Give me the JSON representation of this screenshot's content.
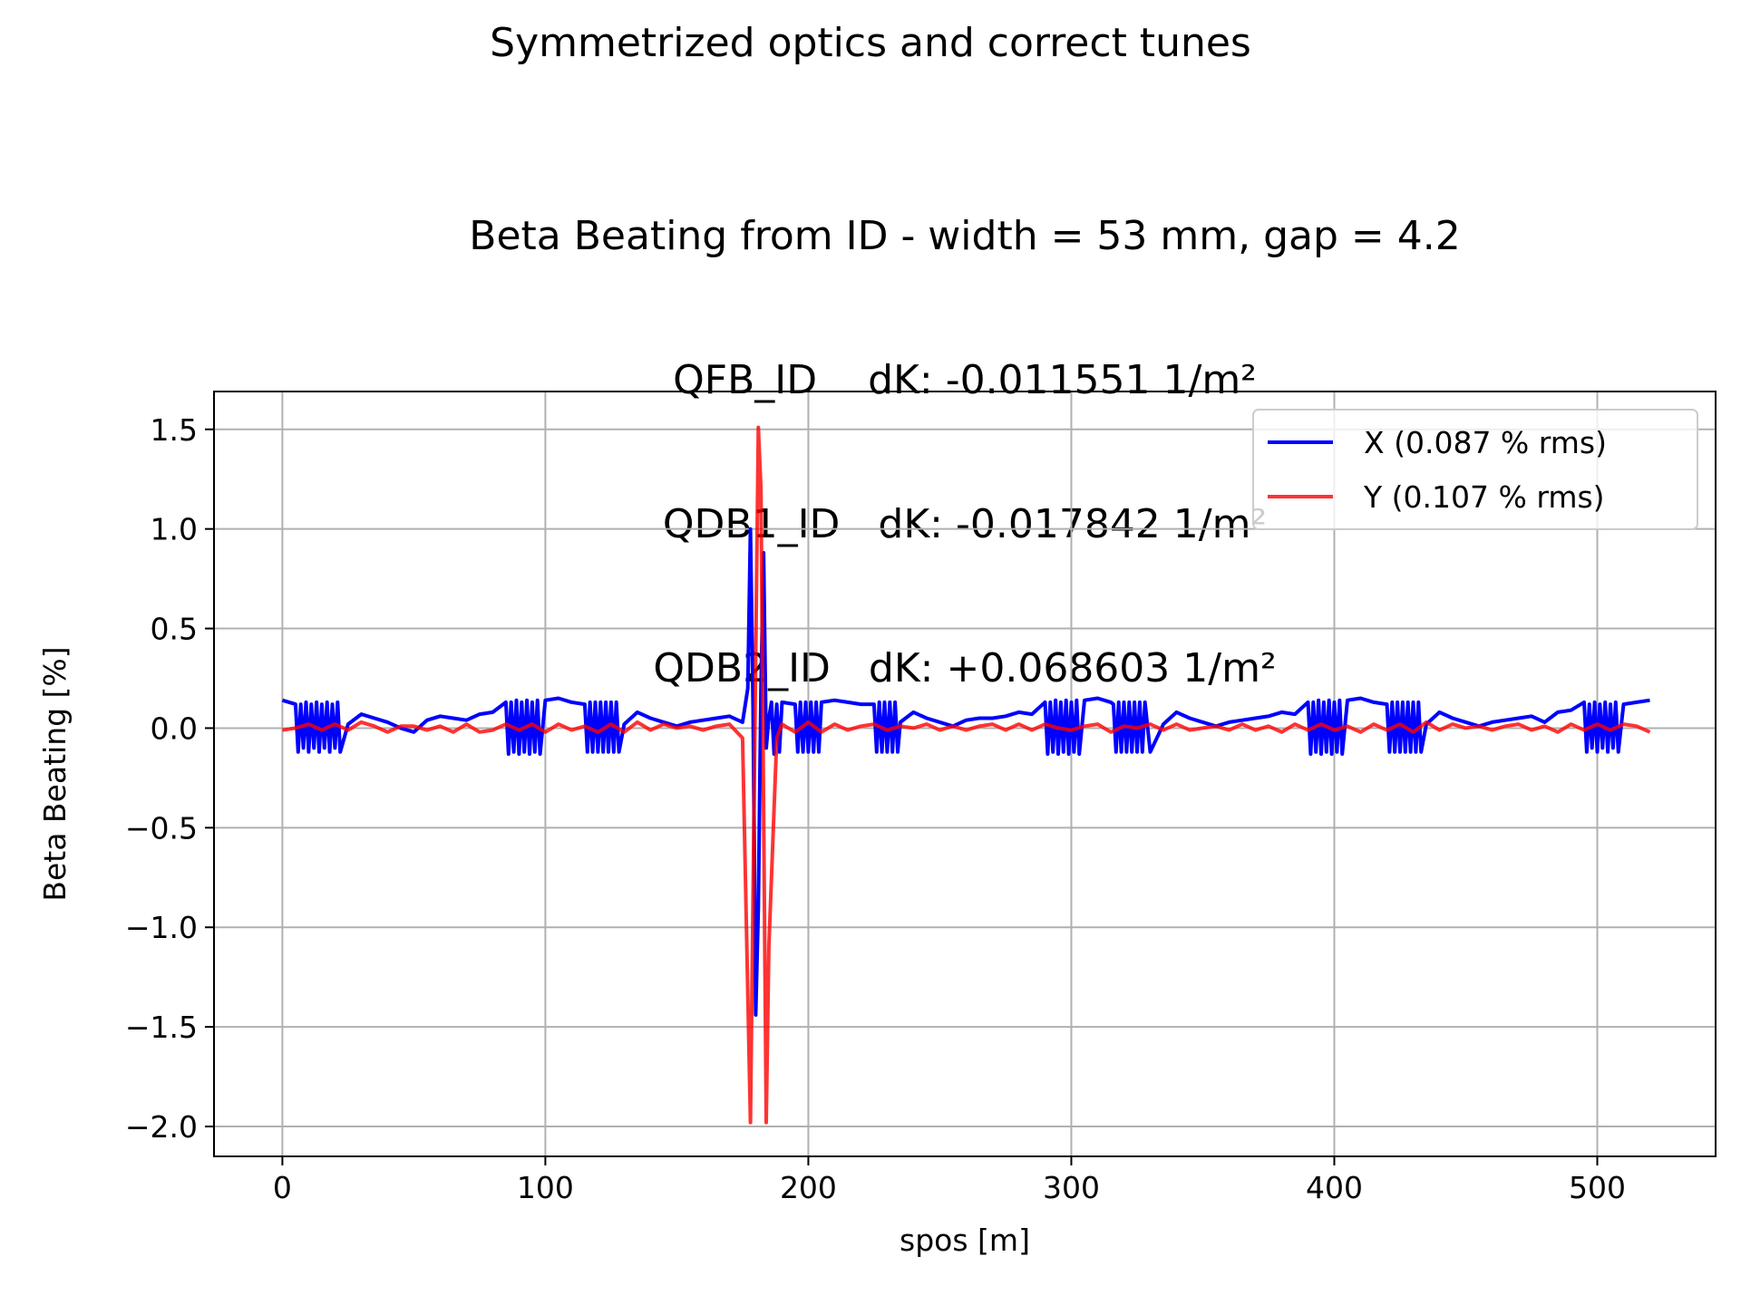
{
  "suptitle": "Symmetrized optics and correct tunes",
  "title_lines": [
    "Beta Beating from ID - width = 53 mm, gap = 4.2",
    "QFB_ID    dK: -0.011551 1/m²",
    "QDB1_ID   dK: -0.017842 1/m²",
    "QDB2_ID   dK: +0.068603 1/m²"
  ],
  "chart_data": {
    "type": "line",
    "xlabel": "spos [m]",
    "ylabel": "Beta Beating [%]",
    "xlim": [
      -26,
      545
    ],
    "ylim": [
      -2.15,
      1.69
    ],
    "xticks": [
      0,
      100,
      200,
      300,
      400,
      500
    ],
    "xtick_labels": [
      "0",
      "100",
      "200",
      "300",
      "400",
      "500"
    ],
    "yticks": [
      1.5,
      1.0,
      0.5,
      0.0,
      -0.5,
      -1.0,
      -1.5,
      -2.0
    ],
    "ytick_labels": [
      "1.5",
      "1.0",
      "0.5",
      "0.0",
      "−0.5",
      "−1.0",
      "−1.5",
      "−2.0"
    ],
    "grid": true,
    "legend_position": "upper right",
    "series": [
      {
        "name": "X (0.087 % rms)",
        "color": "#0000ff",
        "x": [
          0,
          5,
          6,
          7,
          8,
          9,
          10,
          11,
          12,
          13,
          14,
          15,
          16,
          17,
          18,
          19,
          20,
          21,
          22,
          25,
          30,
          35,
          40,
          45,
          50,
          55,
          60,
          65,
          70,
          75,
          80,
          85,
          86,
          87,
          88,
          89,
          90,
          91,
          92,
          93,
          94,
          95,
          96,
          97,
          98,
          100,
          105,
          110,
          115,
          116,
          117,
          118,
          119,
          120,
          121,
          122,
          123,
          124,
          125,
          126,
          127,
          128,
          130,
          135,
          140,
          145,
          150,
          155,
          160,
          165,
          170,
          175,
          177,
          178,
          179,
          180,
          181,
          182,
          183,
          184,
          185,
          186,
          187,
          188,
          189,
          190,
          195,
          196,
          197,
          198,
          199,
          200,
          201,
          202,
          203,
          204,
          205,
          210,
          215,
          220,
          225,
          226,
          227,
          228,
          229,
          230,
          231,
          232,
          233,
          234,
          235,
          240,
          245,
          250,
          255,
          260,
          265,
          270,
          275,
          280,
          285,
          290,
          291,
          292,
          293,
          294,
          295,
          296,
          297,
          298,
          299,
          300,
          301,
          302,
          303,
          305,
          310,
          315,
          316,
          317,
          318,
          319,
          320,
          321,
          322,
          323,
          324,
          325,
          326,
          327,
          328,
          330,
          335,
          340,
          345,
          350,
          355,
          360,
          365,
          370,
          375,
          380,
          385,
          390,
          391,
          392,
          393,
          394,
          395,
          396,
          397,
          398,
          399,
          400,
          401,
          402,
          403,
          405,
          410,
          415,
          420,
          421,
          422,
          423,
          424,
          425,
          426,
          427,
          428,
          429,
          430,
          431,
          432,
          433,
          435,
          440,
          445,
          450,
          455,
          460,
          465,
          470,
          475,
          480,
          485,
          490,
          495,
          496,
          497,
          498,
          499,
          500,
          501,
          502,
          503,
          504,
          505,
          506,
          507,
          508,
          510,
          515,
          520
        ],
        "y": [
          0.14,
          0.12,
          -0.12,
          0.12,
          -0.1,
          0.13,
          -0.12,
          0.12,
          -0.1,
          0.13,
          -0.12,
          0.12,
          -0.1,
          0.13,
          -0.12,
          0.12,
          -0.1,
          0.13,
          -0.12,
          0.02,
          0.07,
          0.05,
          0.03,
          0.0,
          -0.02,
          0.04,
          0.06,
          0.05,
          0.04,
          0.07,
          0.08,
          0.13,
          -0.13,
          0.13,
          -0.12,
          0.14,
          -0.13,
          0.13,
          -0.12,
          0.14,
          -0.13,
          0.13,
          -0.12,
          0.14,
          -0.13,
          0.14,
          0.15,
          0.13,
          0.12,
          -0.12,
          0.13,
          -0.12,
          0.13,
          -0.12,
          0.13,
          -0.12,
          0.13,
          -0.12,
          0.13,
          -0.12,
          0.13,
          -0.12,
          0.02,
          0.08,
          0.05,
          0.03,
          0.01,
          0.03,
          0.04,
          0.05,
          0.06,
          0.03,
          0.2,
          1.0,
          0.1,
          -1.44,
          -0.9,
          0.2,
          0.88,
          -0.1,
          0.05,
          0.13,
          -0.13,
          0.12,
          -0.12,
          0.13,
          0.12,
          -0.12,
          0.13,
          -0.12,
          0.13,
          -0.12,
          0.13,
          -0.12,
          0.13,
          -0.12,
          0.13,
          0.14,
          0.13,
          0.12,
          0.12,
          -0.12,
          0.13,
          -0.12,
          0.13,
          -0.12,
          0.13,
          -0.12,
          0.13,
          -0.12,
          0.03,
          0.08,
          0.05,
          0.03,
          0.01,
          0.04,
          0.05,
          0.05,
          0.06,
          0.08,
          0.07,
          0.13,
          -0.13,
          0.13,
          -0.12,
          0.14,
          -0.13,
          0.13,
          -0.12,
          0.14,
          -0.13,
          0.13,
          -0.12,
          0.14,
          -0.13,
          0.14,
          0.15,
          0.13,
          0.12,
          -0.12,
          0.13,
          -0.12,
          0.13,
          -0.12,
          0.13,
          -0.12,
          0.13,
          -0.12,
          0.13,
          -0.12,
          0.13,
          -0.12,
          0.02,
          0.08,
          0.05,
          0.03,
          0.01,
          0.03,
          0.04,
          0.05,
          0.06,
          0.08,
          0.07,
          0.13,
          -0.13,
          0.13,
          -0.12,
          0.14,
          -0.13,
          0.13,
          -0.12,
          0.14,
          -0.13,
          0.13,
          -0.12,
          0.14,
          -0.13,
          0.14,
          0.15,
          0.13,
          0.12,
          -0.12,
          0.13,
          -0.12,
          0.13,
          -0.12,
          0.13,
          -0.12,
          0.13,
          -0.12,
          0.13,
          -0.12,
          0.13,
          -0.12,
          0.02,
          0.08,
          0.05,
          0.03,
          0.01,
          0.03,
          0.04,
          0.05,
          0.06,
          0.03,
          0.08,
          0.09,
          0.13,
          -0.12,
          0.12,
          -0.1,
          0.13,
          -0.12,
          0.12,
          -0.1,
          0.13,
          -0.12,
          0.12,
          -0.1,
          0.13,
          -0.12,
          0.12,
          0.13,
          0.14
        ]
      },
      {
        "name": "Y (0.107 % rms)",
        "color": "#ff0000",
        "x": [
          0,
          5,
          10,
          15,
          20,
          25,
          30,
          35,
          40,
          45,
          50,
          55,
          60,
          65,
          70,
          75,
          80,
          85,
          90,
          95,
          100,
          105,
          110,
          115,
          120,
          125,
          130,
          135,
          140,
          145,
          150,
          155,
          160,
          165,
          170,
          175,
          178,
          181,
          182,
          184,
          185,
          188,
          190,
          195,
          200,
          205,
          210,
          215,
          220,
          225,
          230,
          235,
          240,
          245,
          250,
          255,
          260,
          265,
          270,
          275,
          280,
          285,
          290,
          295,
          300,
          305,
          310,
          315,
          320,
          325,
          330,
          335,
          340,
          345,
          350,
          355,
          360,
          365,
          370,
          375,
          380,
          385,
          390,
          395,
          400,
          405,
          410,
          415,
          420,
          425,
          430,
          435,
          440,
          445,
          450,
          455,
          460,
          465,
          470,
          475,
          480,
          485,
          490,
          495,
          500,
          505,
          510,
          515,
          520
        ],
        "y": [
          -0.01,
          0.0,
          0.02,
          -0.01,
          0.02,
          -0.01,
          0.03,
          0.01,
          -0.02,
          0.01,
          0.01,
          -0.01,
          0.01,
          -0.02,
          0.02,
          -0.02,
          -0.01,
          0.02,
          -0.01,
          0.02,
          -0.02,
          0.02,
          -0.01,
          0.01,
          -0.02,
          0.02,
          -0.02,
          0.03,
          -0.01,
          0.02,
          0.0,
          0.01,
          -0.01,
          0.01,
          0.02,
          -0.05,
          -1.98,
          1.51,
          1.2,
          -1.98,
          -1.1,
          -0.05,
          0.02,
          -0.02,
          0.03,
          -0.02,
          0.02,
          -0.01,
          0.01,
          0.02,
          -0.01,
          0.01,
          0.0,
          0.02,
          -0.01,
          0.01,
          -0.01,
          0.01,
          0.02,
          -0.01,
          0.02,
          -0.01,
          0.02,
          0.0,
          -0.01,
          0.01,
          0.02,
          -0.02,
          0.01,
          0.0,
          0.02,
          -0.01,
          0.02,
          -0.01,
          0.0,
          0.01,
          -0.01,
          0.02,
          -0.01,
          0.01,
          -0.02,
          0.02,
          -0.01,
          0.02,
          -0.01,
          0.01,
          -0.02,
          0.02,
          -0.01,
          0.02,
          -0.02,
          0.03,
          -0.01,
          0.02,
          0.0,
          0.01,
          -0.01,
          0.01,
          0.02,
          -0.01,
          0.01,
          -0.02,
          0.02,
          -0.01,
          0.02,
          -0.01,
          0.02,
          0.01,
          -0.02
        ]
      }
    ]
  }
}
